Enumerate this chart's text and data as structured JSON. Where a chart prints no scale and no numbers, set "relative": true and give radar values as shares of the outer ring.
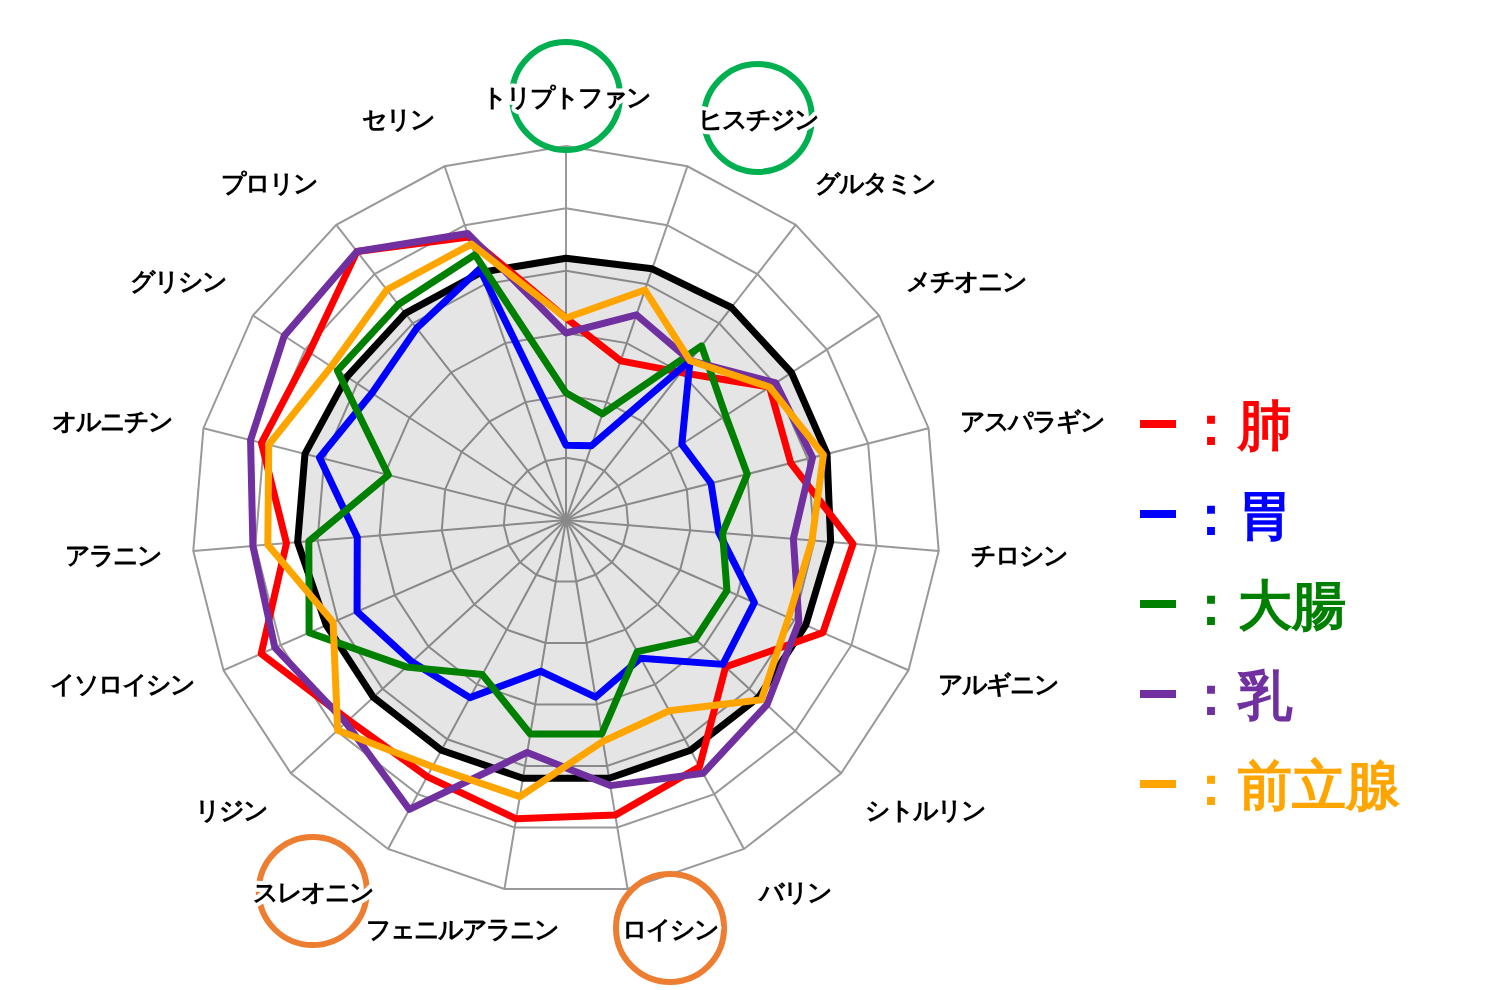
{
  "chart_data": {
    "type": "radar",
    "relative": true,
    "grid": true,
    "legend": "right",
    "line_style": "solid",
    "marker": "none",
    "categories": [
      "トリプトファン",
      "ヒスチジン",
      "グルタミン",
      "メチオニン",
      "アスパラギン",
      "チロシン",
      "アルギニン",
      "シトルリン",
      "バリン",
      "ロイシン",
      "フェニルアラニン",
      "スレオニン",
      "リジン",
      "イソロイシン",
      "アラニン",
      "オルニチン",
      "グリシン",
      "プロリン",
      "セリン"
    ],
    "series": [
      {
        "type": "area",
        "color": "#000000",
        "values": [
          0.7,
          0.71,
          0.72,
          0.72,
          0.72,
          0.71,
          0.7,
          0.7,
          0.7,
          0.7,
          0.7,
          0.7,
          0.7,
          0.7,
          0.72,
          0.72,
          0.7,
          0.7,
          0.7
        ]
      },
      {
        "name": "：肺",
        "color": "#ff0000",
        "values": [
          0.54,
          0.45,
          0.5,
          0.65,
          0.62,
          0.77,
          0.75,
          0.58,
          0.75,
          0.8,
          0.81,
          0.78,
          0.79,
          0.89,
          0.75,
          0.84,
          0.82,
          0.91,
          0.8
        ]
      },
      {
        "name": "：胃",
        "color": "#0000ff",
        "values": [
          0.2,
          0.21,
          0.54,
          0.37,
          0.4,
          0.41,
          0.55,
          0.57,
          0.42,
          0.48,
          0.41,
          0.54,
          0.56,
          0.61,
          0.56,
          0.68,
          0.62,
          0.65,
          0.71
        ]
      },
      {
        "name": "：大腸",
        "color": "#008000",
        "values": [
          0.34,
          0.3,
          0.59,
          0.51,
          0.5,
          0.42,
          0.47,
          0.47,
          0.4,
          0.58,
          0.58,
          0.47,
          0.58,
          0.75,
          0.69,
          0.49,
          0.73,
          0.73,
          0.75
        ]
      },
      {
        "name": "：乳",
        "color": "#7030a0",
        "values": [
          0.5,
          0.58,
          0.54,
          0.67,
          0.68,
          0.61,
          0.68,
          0.73,
          0.77,
          0.72,
          0.63,
          0.88,
          0.8,
          0.85,
          0.84,
          0.87,
          0.9,
          0.91,
          0.81
        ]
      },
      {
        "name": "：前立腺",
        "color": "#ffa500",
        "values": [
          0.54,
          0.65,
          0.54,
          0.65,
          0.71,
          0.66,
          0.65,
          0.71,
          0.58,
          0.6,
          0.75,
          0.75,
          0.83,
          0.68,
          0.8,
          0.82,
          0.75,
          0.78,
          0.78
        ]
      }
    ]
  }
}
